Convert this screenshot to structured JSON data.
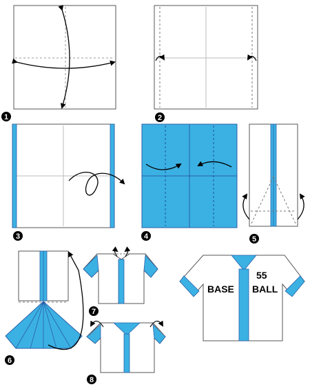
{
  "colors": {
    "blue": "#3bb1e3",
    "dark_blue": "#2a5fa8",
    "paper": "#ffffff",
    "line": "#555555",
    "crease": "#aaaaaa"
  },
  "steps": [
    {
      "number": "1"
    },
    {
      "number": "2"
    },
    {
      "number": "3"
    },
    {
      "number": "4"
    },
    {
      "number": "5"
    },
    {
      "number": "6"
    },
    {
      "number": "7"
    },
    {
      "number": "8"
    }
  ],
  "shirt": {
    "word_left": "BASE",
    "word_right": "BALL",
    "number": "55"
  }
}
